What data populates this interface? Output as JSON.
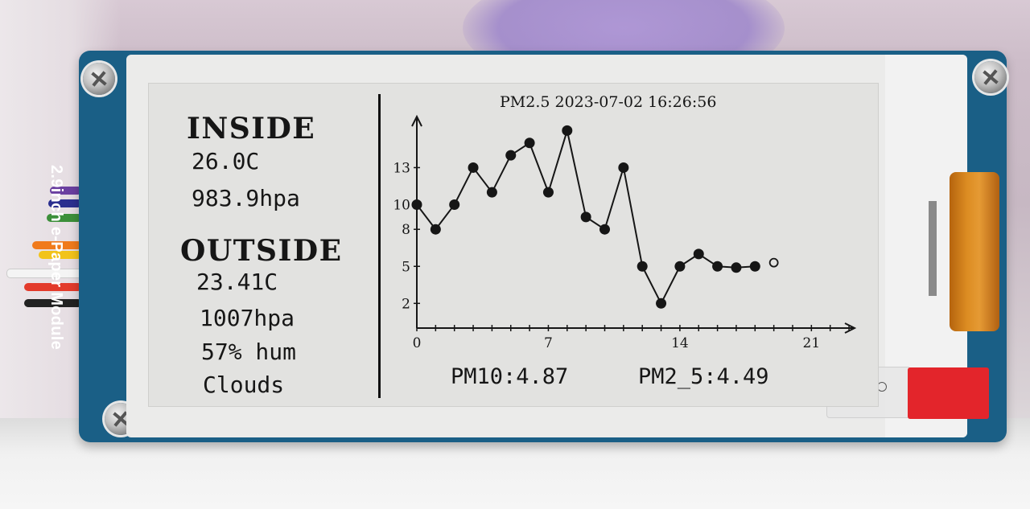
{
  "pcb": {
    "label": "2.9inch e-Paper Module"
  },
  "inside": {
    "heading": "INSIDE",
    "temperature": "26.0C",
    "pressure": "983.9hpa"
  },
  "outside": {
    "heading": "OUTSIDE",
    "temperature": "23.41C",
    "pressure": "1007hpa",
    "humidity": "57% hum",
    "condition": "Clouds"
  },
  "chart_title": "PM2.5 2023-07-02 16:26:56",
  "footer": {
    "pm10": "PM10:4.87",
    "pm25": "PM2_5:4.49"
  },
  "chart_data": {
    "type": "line",
    "title": "PM2.5 2023-07-02 16:26:56",
    "xlim": [
      0,
      23
    ],
    "ylim": [
      0,
      16
    ],
    "x_ticks": [
      0,
      7,
      14,
      21
    ],
    "y_ticks": [
      2,
      5,
      8,
      10,
      13
    ],
    "series": [
      {
        "x": [
          0,
          1,
          2,
          3,
          4,
          5,
          6,
          7,
          8,
          9,
          10,
          11,
          12,
          13,
          14,
          15,
          16,
          17,
          18
        ],
        "values": [
          10,
          8,
          10,
          13,
          11,
          14,
          15,
          11,
          16,
          9,
          8,
          13,
          5,
          2,
          5,
          6,
          5,
          4.9,
          5
        ]
      }
    ],
    "current_marker": {
      "x": 19,
      "y": 5.3
    }
  },
  "colors": {
    "ink": "#161616",
    "paper": "#e2e2e0",
    "pcb": "#1a5f86",
    "tape": "#e3252b"
  }
}
